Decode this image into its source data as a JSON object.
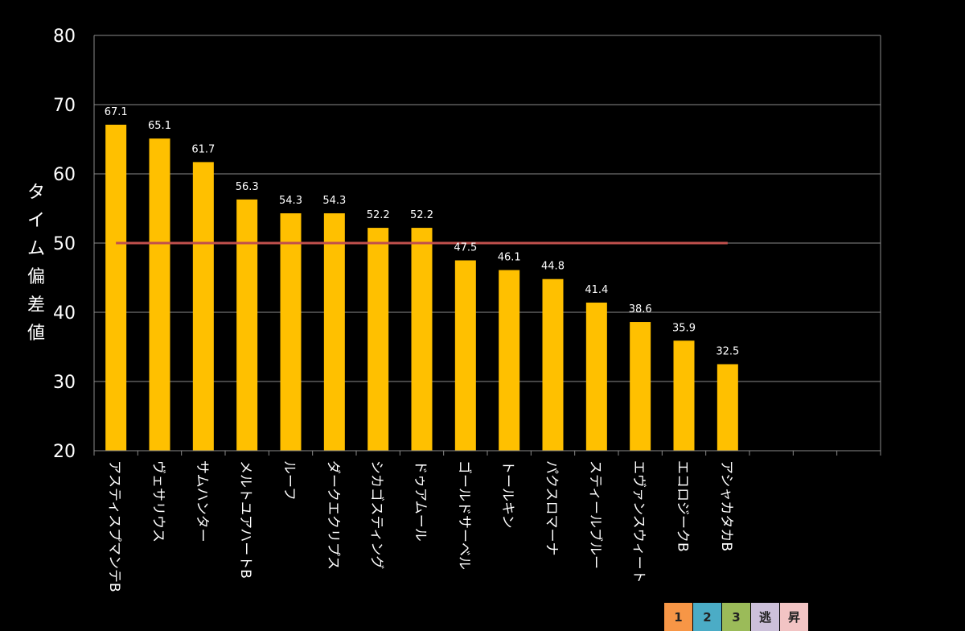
{
  "chart_data": {
    "type": "bar",
    "title": "",
    "xlabel": "",
    "ylabel": "タイム偏差値",
    "ylim": [
      20,
      80
    ],
    "yticks": [
      20,
      30,
      40,
      50,
      60,
      70,
      80
    ],
    "grid": true,
    "reference_line": 50,
    "categories": [
      "アスティスプマンテB",
      "ヴェサリウス",
      "サムハンター",
      "メルトユアハートB",
      "ルーフ",
      "ダークエクリプス",
      "シカゴスティング",
      "ドゥアムール",
      "ゴールドサーベル",
      "トールキン",
      "パクスロマーナ",
      "スティールブルー",
      "エヴァンスウィート",
      "エコロジークB",
      "アシャカタカB"
    ],
    "values": [
      67.1,
      65.1,
      61.7,
      56.3,
      54.3,
      54.3,
      52.2,
      52.2,
      47.5,
      46.1,
      44.8,
      41.4,
      38.6,
      35.9,
      32.5
    ],
    "value_labels": [
      "67.1",
      "65.1",
      "61.7",
      "56.3",
      "54.3",
      "54.3",
      "52.2",
      "52.2",
      "47.5",
      "46.1",
      "44.8",
      "41.4",
      "38.6",
      "35.9",
      "32.5"
    ],
    "total_slots": 18
  },
  "colors": {
    "bar": "#FFC000",
    "reference_line": "#C0504D",
    "grid": "#8a8a8a",
    "background": "#000000"
  },
  "legend": [
    {
      "label": "1",
      "color": "#F79646"
    },
    {
      "label": "2",
      "color": "#4BACC6"
    },
    {
      "label": "3",
      "color": "#9BBB59"
    },
    {
      "label": "逃",
      "color": "#CCC0DA"
    },
    {
      "label": "昇",
      "color": "#F2C4C4"
    }
  ]
}
